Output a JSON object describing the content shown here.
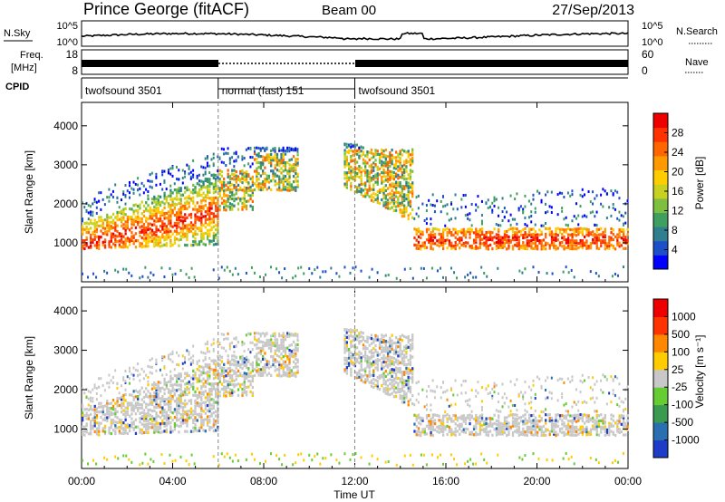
{
  "header": {
    "station": "Prince George (fitACF)",
    "beam": "Beam 00",
    "date": "27/Sep/2013"
  },
  "noise_panel": {
    "left_label": "N.Sky",
    "left_ticks": [
      "10^5",
      "10^0"
    ],
    "right_label": "N.Search",
    "right_ticks": [
      "10^5",
      "10^0"
    ]
  },
  "freq_panel": {
    "left_label_1": "Freq.",
    "left_label_2": "[MHz]",
    "left_ticks": [
      "18",
      "8"
    ],
    "right_label": "Nave",
    "right_ticks": [
      "60",
      "0"
    ]
  },
  "cpid": {
    "label": "CPID",
    "segments": [
      {
        "name": "twofsound 3501",
        "start": 0,
        "end": 6
      },
      {
        "name": "normal (fast) 151",
        "start": 6,
        "end": 12
      },
      {
        "name": "twofsound 3501",
        "start": 12,
        "end": 24
      }
    ]
  },
  "chart_data": [
    {
      "type": "heatmap",
      "name": "power",
      "ylabel": "Slant Range [km]",
      "yticks": [
        1000,
        2000,
        3000,
        4000
      ],
      "ylim": [
        0,
        4600
      ],
      "xlim": [
        0,
        24
      ],
      "colorbar": {
        "label": "Power [dB]",
        "ticks": [
          "4",
          "8",
          "12",
          "16",
          "20",
          "24",
          "28"
        ],
        "colors": [
          "#0000ff",
          "#1d50c8",
          "#2f7f8f",
          "#3f9f5f",
          "#7fbf3f",
          "#c8d020",
          "#ffcc00",
          "#ff9900",
          "#ff6600",
          "#ff3300",
          "#ee0000"
        ]
      }
    },
    {
      "type": "heatmap",
      "name": "velocity",
      "ylabel": "Slant Range [km]",
      "yticks": [
        1000,
        2000,
        3000,
        4000
      ],
      "ylim": [
        0,
        4600
      ],
      "xlim": [
        0,
        24
      ],
      "colorbar": {
        "label": "Velocity [m s⁻¹]",
        "ticks": [
          "1000",
          "500",
          "100",
          "25",
          "-25",
          "-100",
          "-500",
          "-1000"
        ],
        "colors": [
          "#1e3cc8",
          "#2a6fb0",
          "#3a9a50",
          "#66cc33",
          "#c8c8c8",
          "#ffcc00",
          "#ff8800",
          "#ff3300",
          "#ee0000"
        ]
      }
    }
  ],
  "x_axis": {
    "label": "Time UT",
    "ticks": [
      "00:00",
      "04:00",
      "08:00",
      "12:00",
      "16:00",
      "20:00",
      "00:00"
    ]
  }
}
